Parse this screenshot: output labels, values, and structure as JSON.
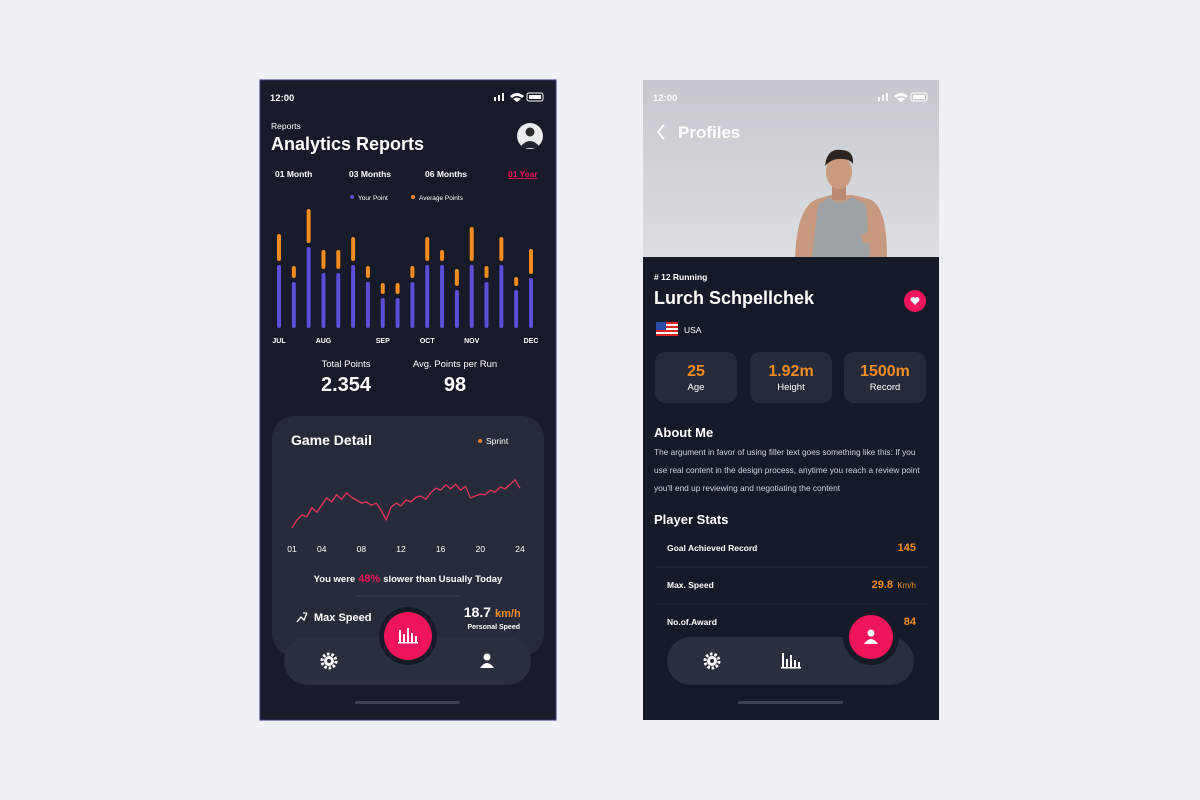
{
  "analytics_screen": {
    "status_time": "12:00",
    "breadcrumb": "Reports",
    "title": "Analytics Reports",
    "tabs": [
      "01 Month",
      "03 Months",
      "06 Months",
      "01 Year"
    ],
    "active_tab": 3,
    "summary": [
      {
        "label": "Total Points",
        "value": "2.354"
      },
      {
        "label": "Avg. Points per Run",
        "value": "98"
      }
    ],
    "game_detail_title": "Game Detail",
    "comparison": {
      "prefix": "You were",
      "highlight": "48%",
      "suffix": "slower than Usually Today"
    },
    "speed": {
      "label": "Max Speed",
      "value": "18.7",
      "unit": "km/h",
      "caption": "Personal Speed"
    }
  },
  "profile_screen": {
    "status_time": "12:00",
    "title": "Profiles",
    "rank": "# 12 Running",
    "name": "Lurch Schpellchek",
    "country": "USA",
    "stats_cards": [
      {
        "value": "25",
        "label": "Age"
      },
      {
        "value": "1.92m",
        "label": "Height"
      },
      {
        "value": "1500m",
        "label": "Record"
      }
    ],
    "about_title": "About Me",
    "about_lines": [
      "The argument in favor of using filler text goes something like this: If you",
      "use real content in the design process, anytime you reach a review point",
      "you'll end up reviewing and negotiating the content"
    ],
    "player_stats_title": "Player Stats",
    "player_stats": [
      {
        "label": "Goal Achieved Record",
        "value": "145"
      },
      {
        "label": "Max. Speed",
        "value": "29.8",
        "unit": "Km/h"
      },
      {
        "label": "No.of.Award",
        "value": "84"
      }
    ]
  },
  "chart_data": [
    {
      "type": "bar",
      "stacked": true,
      "categories": [
        "JUL",
        null,
        null,
        "AUG",
        null,
        null,
        null,
        "SEP",
        null,
        null,
        "OCT",
        null,
        null,
        "NOV",
        null,
        null,
        null,
        "DEC"
      ],
      "series": [
        {
          "name": "Your Point",
          "color": "#5b4fd9",
          "values": [
            63,
            46,
            81,
            55,
            55,
            63,
            46,
            30,
            30,
            46,
            63,
            63,
            38,
            63,
            46,
            63,
            38,
            50
          ]
        },
        {
          "name": "Average Points",
          "color": "#f28c1e",
          "values": [
            27,
            12,
            34,
            19,
            19,
            24,
            12,
            11,
            11,
            12,
            24,
            11,
            17,
            34,
            12,
            24,
            9,
            25
          ]
        }
      ],
      "ylim": [
        0,
        125
      ]
    },
    {
      "type": "line",
      "x": [
        1,
        1.5,
        2,
        2.5,
        3,
        3.5,
        4,
        4.5,
        5,
        5.5,
        6,
        6.5,
        7,
        7.5,
        8,
        8.5,
        9,
        9.5,
        10,
        10.5,
        11,
        11.5,
        12,
        12.5,
        13,
        13.5,
        14,
        14.5,
        15,
        15.5,
        16,
        16.5,
        17,
        17.5,
        18,
        18.5,
        19,
        19.5,
        20,
        20.5,
        21,
        21.5,
        22,
        22.5,
        23,
        23.5,
        24
      ],
      "series": [
        {
          "name": "Sprint",
          "color": "#e8345a",
          "legend_color": "#f28c1e",
          "values": [
            11,
            23,
            31,
            28,
            42,
            35,
            46,
            57,
            51,
            62,
            55,
            65,
            58,
            54,
            49,
            51,
            46,
            49,
            38,
            23,
            43,
            49,
            45,
            54,
            51,
            58,
            60,
            55,
            65,
            72,
            69,
            77,
            71,
            78,
            69,
            75,
            57,
            60,
            63,
            62,
            69,
            66,
            74,
            71,
            78,
            85,
            72
          ]
        }
      ],
      "xlim": [
        1,
        24
      ],
      "xticks": [
        {
          "value": 1,
          "label": "01"
        },
        {
          "value": 4,
          "label": "04"
        },
        {
          "value": 8,
          "label": "08"
        },
        12,
        16,
        20,
        24
      ],
      "ylim": [
        0,
        100
      ]
    }
  ]
}
